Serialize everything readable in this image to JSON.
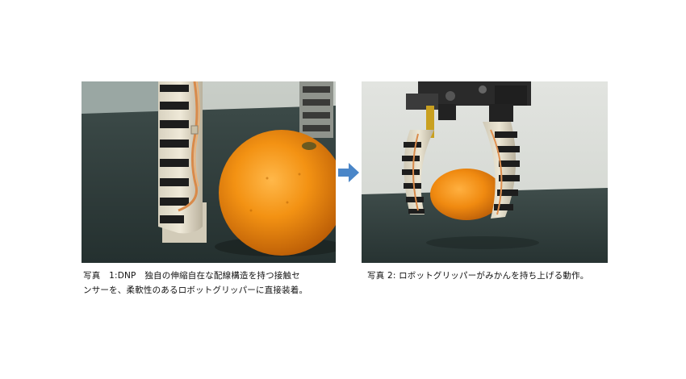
{
  "photos": [
    {
      "caption_lines": [
        "写真　1:DNP　独自の伸縮自在な配線構造を持つ接触セ",
        "ンサーを、柔軟性のあるロボットグリッパーに直接装着。"
      ]
    },
    {
      "caption_lines": [
        "写真 2: ロボットグリッパーがみかんを持ち上げる動作。"
      ]
    }
  ],
  "colors": {
    "arrow": "#4a86c8",
    "orange": "#f08a10",
    "table_dark": "#2f3b3a",
    "wall": "#d9dcd6"
  }
}
